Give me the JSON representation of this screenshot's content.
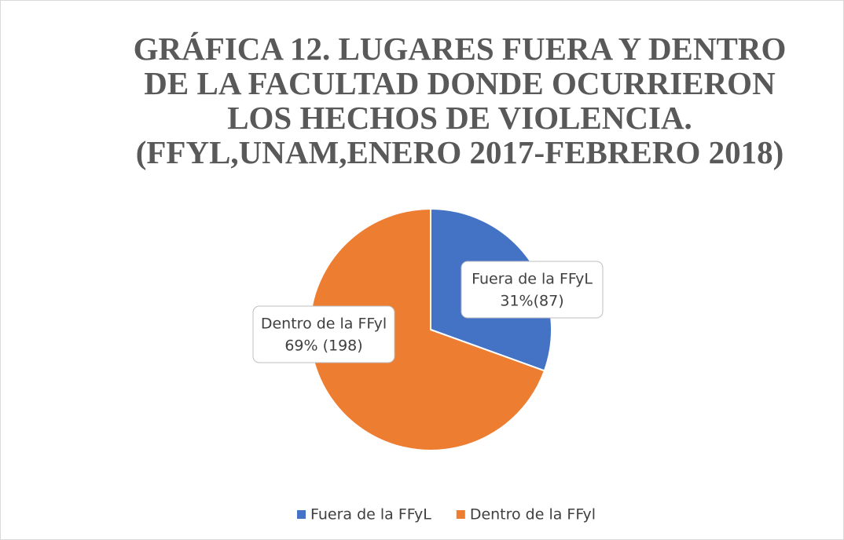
{
  "chart_data": {
    "type": "pie",
    "title": "GRÁFICA 12. LUGARES FUERA Y DENTRO DE LA FACULTAD DONDE OCURRIERON LOS HECHOS DE VIOLENCIA. (FFYL,UNAM,ENERO 2017-FEBRERO 2018)",
    "categories": [
      "Fuera de la FFyL",
      "Dentro de la FFyl"
    ],
    "values": [
      87,
      198
    ],
    "value_labels": [
      "31%(87)",
      "69% (198)"
    ],
    "colors": [
      "#4472c4",
      "#ed7d31"
    ],
    "legend": "bottom"
  }
}
